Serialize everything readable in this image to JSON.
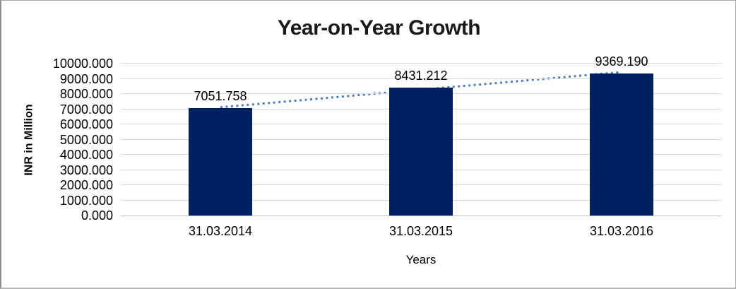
{
  "chart_data": {
    "type": "bar",
    "title": "Year-on-Year Growth",
    "categories": [
      "31.03.2014",
      "31.03.2015",
      "31.03.2016"
    ],
    "values": [
      7051.758,
      8431.212,
      9369.19
    ],
    "data_labels": [
      "7051.758",
      "8431.212",
      "9369.190"
    ],
    "xlabel": "Years",
    "ylabel": "INR in Million",
    "ylim": [
      0,
      10000
    ],
    "y_tick_step": 1000,
    "y_tick_labels": [
      "0.000",
      "1000.000",
      "2000.000",
      "3000.000",
      "4000.000",
      "5000.000",
      "6000.000",
      "7000.000",
      "8000.000",
      "9000.000",
      "10000.000"
    ],
    "grid": true,
    "legend": "none",
    "bar_color": "#002060",
    "gridline_color": "#d9d9d9",
    "axis_line_color": "#c0c0c0",
    "trendline": {
      "type": "linear",
      "style": "dotted",
      "color": "#4a7ebb"
    }
  }
}
